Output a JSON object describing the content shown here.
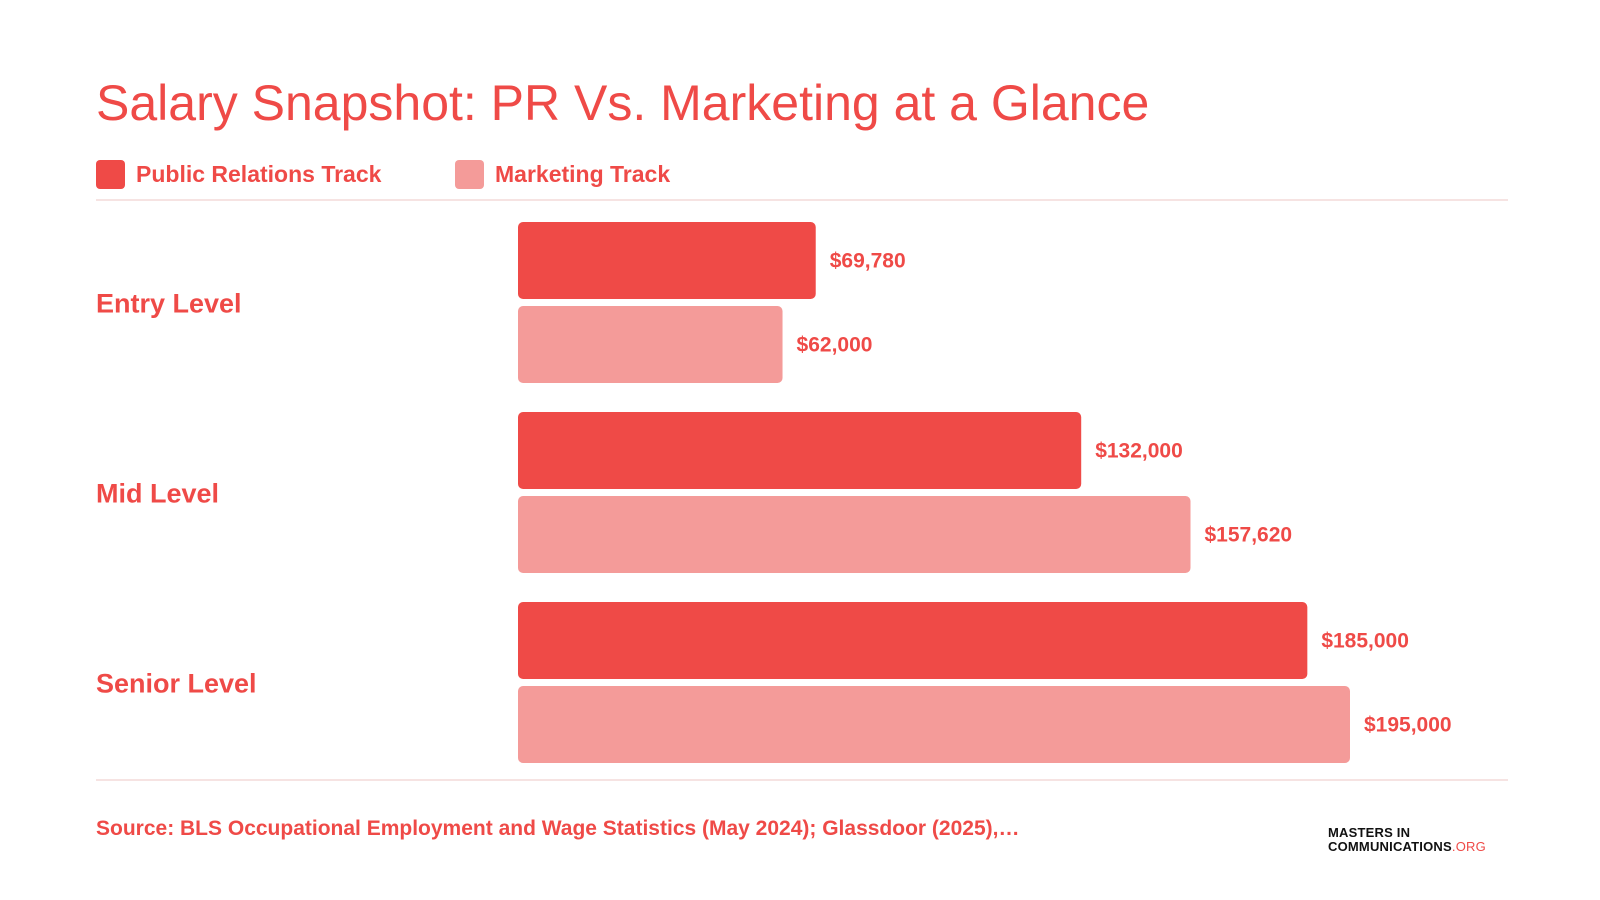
{
  "title": "Salary Snapshot: PR Vs. Marketing at a Glance",
  "legend": [
    {
      "label": "Public Relations Track",
      "color": "#ef4a47"
    },
    {
      "label": "Marketing Track",
      "color": "#f49b99"
    }
  ],
  "chart_data": {
    "type": "bar",
    "orientation": "horizontal",
    "title": "Salary Snapshot: PR Vs. Marketing at a Glance",
    "categories": [
      "Entry Level",
      "Mid Level",
      "Senior Level"
    ],
    "series": [
      {
        "name": "Public Relations Track",
        "color": "#ef4a47",
        "values": [
          69780,
          132000,
          185000
        ],
        "labels": [
          "$69,780",
          "$132,000",
          "$185,000"
        ]
      },
      {
        "name": "Marketing Track",
        "color": "#f49b99",
        "values": [
          62000,
          157620,
          195000
        ],
        "labels": [
          "$62,000",
          "$157,620",
          "$195,000"
        ]
      }
    ],
    "xlim": [
      0,
      195000
    ],
    "grid": false,
    "legend_position": "top-left"
  },
  "source": "Source: BLS Occupational Employment and Wage Statistics (May 2024); Glassdoor (2025),…",
  "logo": {
    "line1": "MASTERS IN",
    "line2": "COMMUNICATIONS",
    "suffix": ".ORG"
  }
}
